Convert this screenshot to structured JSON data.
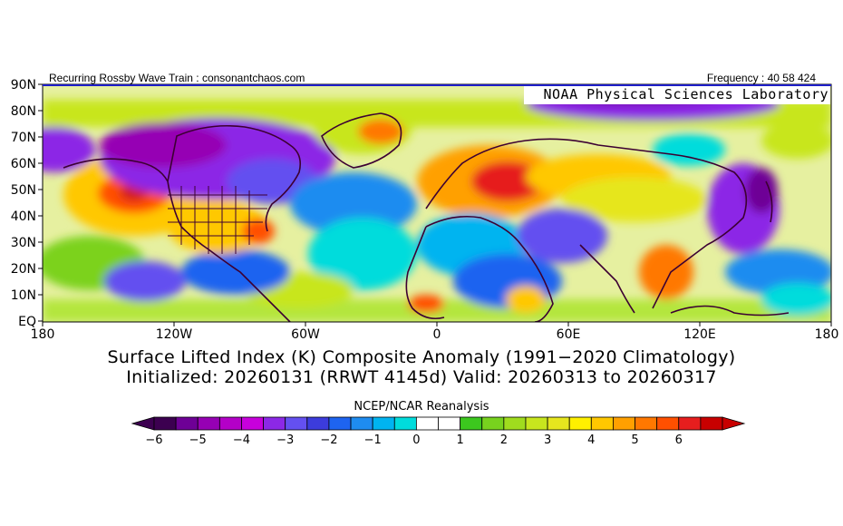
{
  "header": {
    "left_text": "Recurring Rossby Wave Train : consonantchaos.com",
    "right_text": "Frequency : 40 58 424",
    "lab_label": "NOAA Physical Sciences Laboratory"
  },
  "map": {
    "lat_labels": [
      "90N",
      "80N",
      "70N",
      "60N",
      "50N",
      "40N",
      "30N",
      "20N",
      "10N",
      "EQ"
    ],
    "lon_labels": [
      "180",
      "120W",
      "60W",
      "0",
      "60E",
      "120E",
      "180"
    ]
  },
  "title": {
    "line1": "Surface Lifted Index (K) Composite Anomaly (1991−2020 Climatology)",
    "line2": "Initialized: 20260131 (RRWT 4145d) Valid: 20260313 to 20260317"
  },
  "source": "NCEP/NCAR Reanalysis",
  "colorbar": {
    "tick_labels": [
      "−6",
      "−5",
      "−4",
      "−3",
      "−2",
      "−1",
      "0",
      "1",
      "2",
      "3",
      "4",
      "5",
      "6"
    ],
    "colors": [
      "#3c0050",
      "#6e0096",
      "#9600b4",
      "#b400c8",
      "#c800dc",
      "#8c28e6",
      "#6450f0",
      "#3c3cdc",
      "#1e64f0",
      "#1e8cf0",
      "#00b4f0",
      "#00dcdc",
      "#ffffff",
      "#ffffff",
      "#3cc81e",
      "#78d21e",
      "#a0dc1e",
      "#c8e61e",
      "#e6e61e",
      "#fff000",
      "#ffc800",
      "#ffa000",
      "#ff7800",
      "#ff5000",
      "#e61e1e",
      "#c80000"
    ]
  }
}
